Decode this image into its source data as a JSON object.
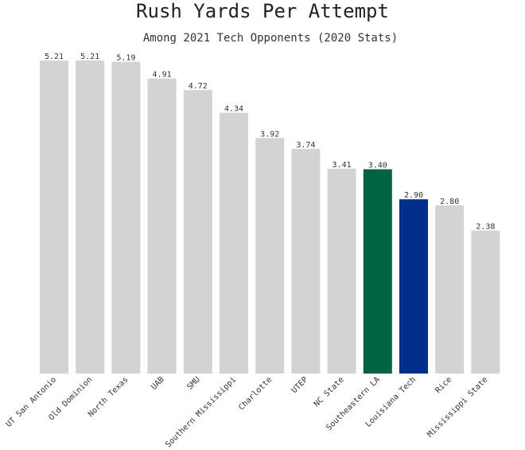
{
  "chart_data": {
    "type": "bar",
    "title": "Rush Yards Per Attempt",
    "subtitle": "Among 2021 Tech Opponents (2020 Stats)",
    "xlabel": "",
    "ylabel": "",
    "ylim": [
      0,
      5.5
    ],
    "grid": false,
    "categories": [
      "UT San Antonio",
      "Old Dominion",
      "North Texas",
      "UAB",
      "SMU",
      "Southern Mississippi",
      "Charlotte",
      "UTEP",
      "NC State",
      "Southeastern LA",
      "Louisiana Tech",
      "Rice",
      "Mississippi State"
    ],
    "values": [
      5.21,
      5.21,
      5.19,
      4.91,
      4.72,
      4.34,
      3.92,
      3.74,
      3.41,
      3.4,
      2.9,
      2.8,
      2.38
    ],
    "value_labels": [
      "5.21",
      "5.21",
      "5.19",
      "4.91",
      "4.72",
      "4.34",
      "3.92",
      "3.74",
      "3.41",
      "3.40",
      "2.90",
      "2.80",
      "2.38"
    ],
    "colors": [
      "#d3d3d3",
      "#d3d3d3",
      "#d3d3d3",
      "#d3d3d3",
      "#d3d3d3",
      "#d3d3d3",
      "#d3d3d3",
      "#d3d3d3",
      "#d3d3d3",
      "#006341",
      "#002f8b",
      "#d3d3d3",
      "#d3d3d3"
    ]
  }
}
